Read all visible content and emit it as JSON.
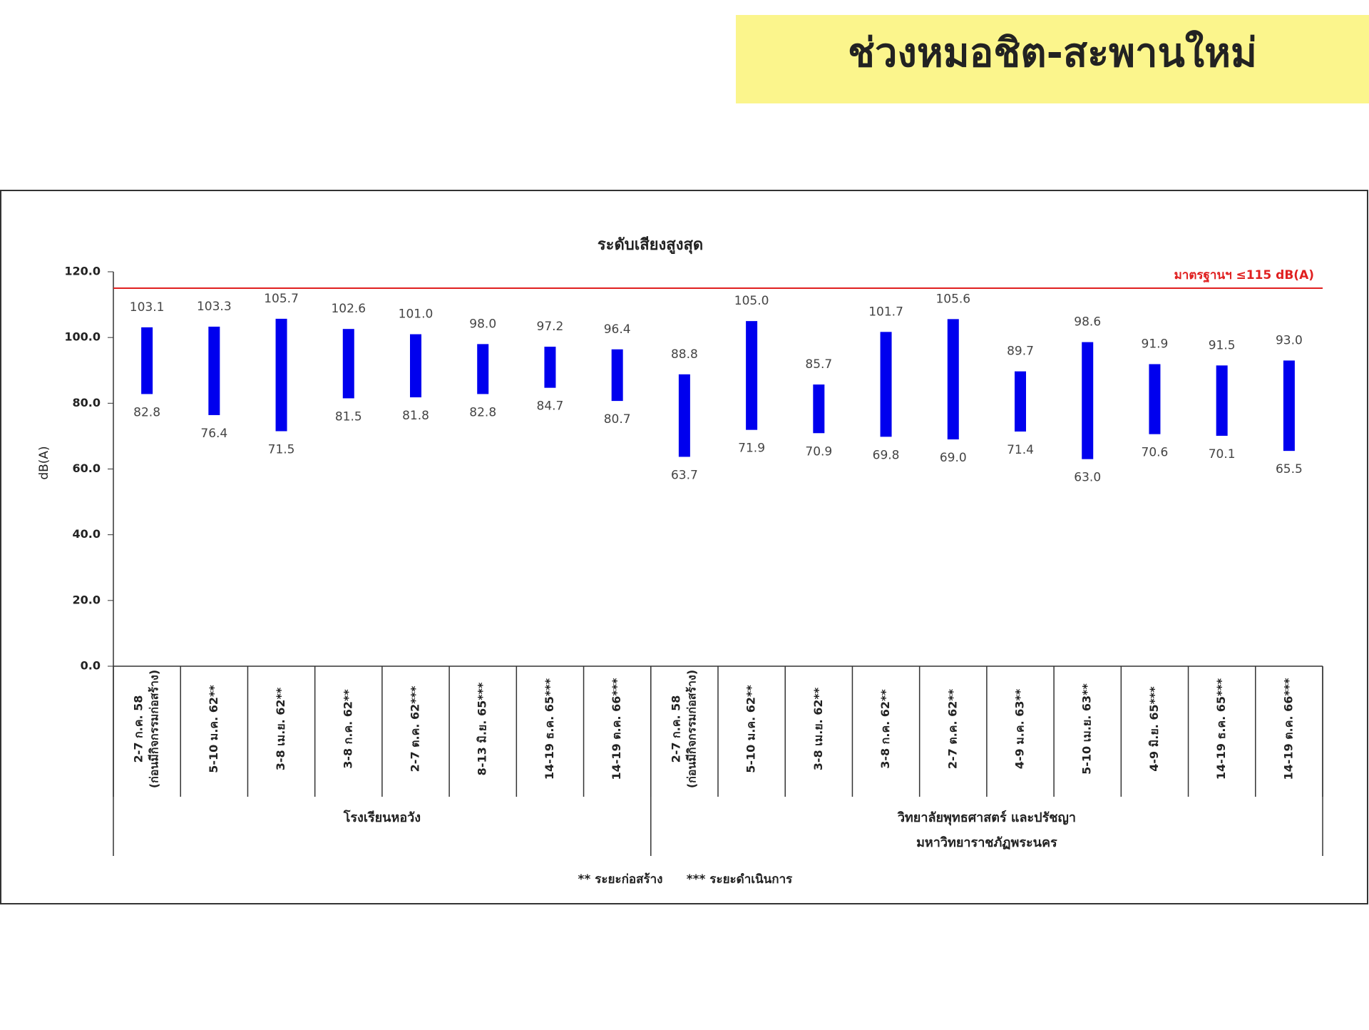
{
  "header": {
    "title": "ช่วงหมอชิต-สะพานใหม่"
  },
  "chart_data": {
    "type": "range-bar",
    "title": "ระดับเสียงสูงสุด",
    "y_label": "dB(A)",
    "ylim": [
      0,
      120
    ],
    "yticks": [
      {
        "value": 0,
        "label": "0.0"
      },
      {
        "value": 20,
        "label": "20.0"
      },
      {
        "value": 40,
        "label": "40.0"
      },
      {
        "value": 60,
        "label": "60.0"
      },
      {
        "value": 80,
        "label": "80.0"
      },
      {
        "value": 100,
        "label": "100.0"
      },
      {
        "value": 120,
        "label": "120.0"
      }
    ],
    "color": "#0000ee",
    "categories": [
      [
        "2-7 ก.ค. 58",
        "(ก่อนมีกิจกรรมก่อสร้าง)"
      ],
      [
        "5-10 ม.ค. 62**"
      ],
      [
        "3-8 เม.ย. 62**"
      ],
      [
        "3-8 ก.ค. 62**"
      ],
      [
        "2-7 ต.ค. 62***"
      ],
      [
        "8-13 มิ.ย. 65***"
      ],
      [
        "14-19 ธ.ค. 65***"
      ],
      [
        "14-19 ต.ค. 66***"
      ],
      [
        "2-7 ก.ค. 58",
        "(ก่อนมีกิจกรรมก่อสร้าง)"
      ],
      [
        "5-10 ม.ค. 62**"
      ],
      [
        "3-8 เม.ย. 62**"
      ],
      [
        "3-8 ก.ค. 62**"
      ],
      [
        "2-7 ต.ค. 62**"
      ],
      [
        "4-9 ม.ค. 63**"
      ],
      [
        "5-10 เม.ย. 63**"
      ],
      [
        "4-9 มิ.ย. 65***"
      ],
      [
        "14-19 ธ.ค. 65***"
      ],
      [
        "14-19 ต.ค. 66***"
      ]
    ],
    "groups": [
      {
        "label": [
          "โรงเรียนหอวัง"
        ],
        "count": 8
      },
      {
        "label": [
          "วิทยาลัยพุทธศาสตร์ และปรัชญา",
          "มหาวิทยาราชภัฏพระนคร"
        ],
        "count": 10
      }
    ],
    "series": [
      {
        "name": "max",
        "values": [
          103.1,
          103.3,
          105.7,
          102.6,
          101,
          98,
          97.2,
          96.4,
          88.8,
          105,
          85.7,
          101.7,
          105.6,
          89.7,
          98.6,
          91.9,
          91.5,
          93
        ],
        "value_labels": [
          "103.1",
          "103.3",
          "105.7",
          "102.6",
          "101.0",
          "98.0",
          "97.2",
          "96.4",
          "88.8",
          "105.0",
          "85.7",
          "101.7",
          "105.6",
          "89.7",
          "98.6",
          "91.9",
          "91.5",
          "93.0"
        ]
      },
      {
        "name": "min",
        "values": [
          82.8,
          76.4,
          71.5,
          81.5,
          81.8,
          82.8,
          84.7,
          80.7,
          63.7,
          71.9,
          70.9,
          69.8,
          69,
          71.4,
          63,
          70.6,
          70.1,
          65.5
        ],
        "value_labels": [
          "82.8",
          "76.4",
          "71.5",
          "81.5",
          "81.8",
          "82.8",
          "84.7",
          "80.7",
          "63.7",
          "71.9",
          "70.9",
          "69.8",
          "69.0",
          "71.4",
          "63.0",
          "70.6",
          "70.1",
          "65.5"
        ]
      }
    ],
    "reference_line": {
      "value": 115,
      "label": "มาตรฐานฯ ≤115 dB(A)",
      "color": "#e02020"
    },
    "footnotes": [
      "** ระยะก่อสร้าง",
      "*** ระยะดำเนินการ"
    ]
  }
}
